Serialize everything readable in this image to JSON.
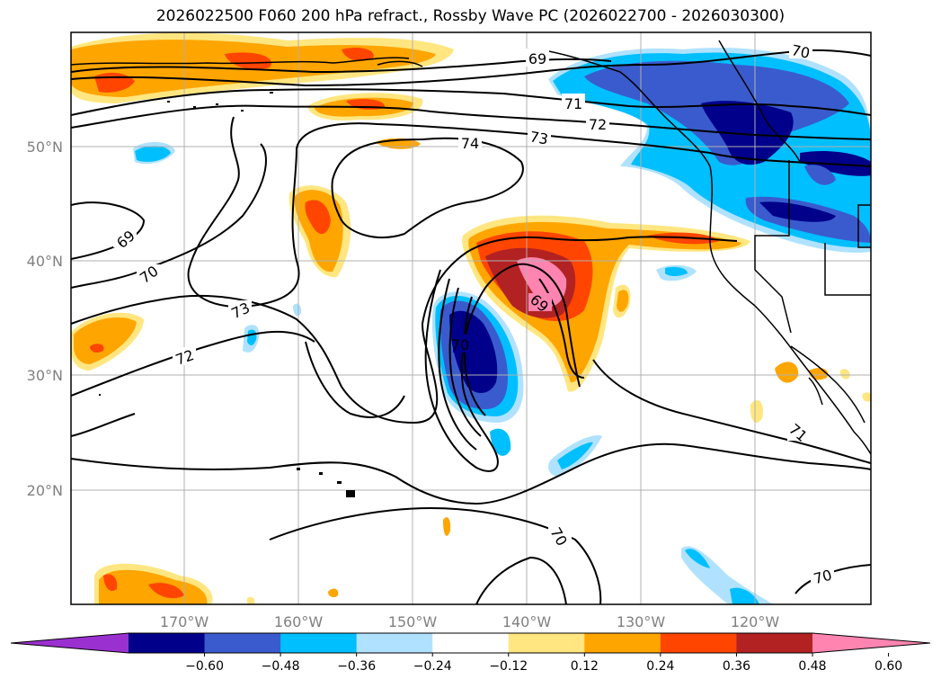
{
  "title": "2026022500 F060 200 hPa refract., Rossby Wave PC (2026022700 - 2026030300)",
  "lat_labels": [
    "50°N",
    "40°N",
    "30°N",
    "20°N"
  ],
  "lon_labels": [
    "170°W",
    "160°W",
    "150°W",
    "140°W",
    "130°W",
    "120°W"
  ],
  "contour_labels": [
    "69",
    "70",
    "71",
    "72",
    "73",
    "74",
    "69",
    "70",
    "73",
    "72",
    "69",
    "70",
    "71",
    "70",
    "70"
  ],
  "colorbar": {
    "ticks": [
      "−0.60",
      "−0.48",
      "−0.36",
      "−0.24",
      "−0.12",
      "0.12",
      "0.24",
      "0.36",
      "0.48",
      "0.60"
    ],
    "colors": [
      "#9b30d0",
      "#00008b",
      "#3a5bcd",
      "#00bfff",
      "#b0e2ff",
      "#ffffff",
      "#ffe680",
      "#ffa500",
      "#ff4500",
      "#b22222",
      "#ff85b0"
    ]
  }
}
